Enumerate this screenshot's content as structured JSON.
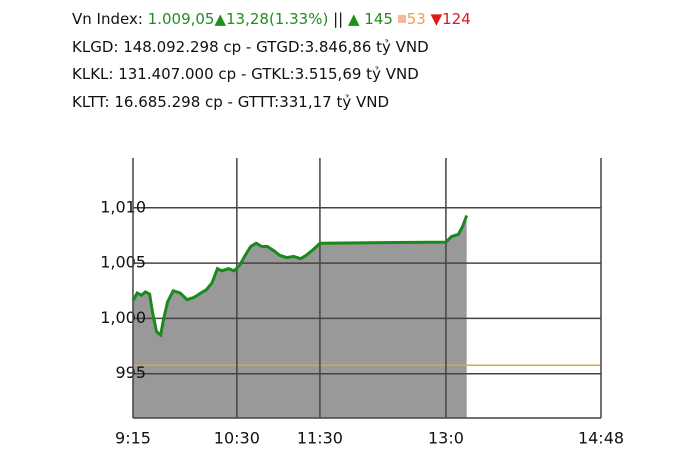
{
  "header": {
    "index_label": "Vn Index:",
    "index_value": "1.009,05▲13,28(1.33%)",
    "separator": "||",
    "advancers": "▲ 145",
    "unchanged": "53",
    "decliners": "▼124",
    "lines": [
      "KLGD: 148.092.298 cp - GTGD:3.846,86 tỷ VND",
      "KLKL: 131.407.000 cp - GTKL:3.515,69 tỷ VND",
      "KLTT: 16.685.298 cp - GTTT:331,17 tỷ VND"
    ]
  },
  "chart_data": {
    "type": "area",
    "color": "#1a8a1a",
    "fill": "#999999",
    "grid": true,
    "x": [
      0,
      3,
      6,
      9,
      12,
      14,
      17,
      20,
      22,
      25,
      29,
      34,
      39,
      44,
      49,
      53,
      57,
      61,
      64,
      69,
      73,
      77,
      81,
      85,
      89,
      93,
      97,
      102,
      106,
      111,
      116,
      121,
      125,
      130,
      135,
      226,
      230,
      235,
      238,
      241
    ],
    "values": [
      1001.6,
      1002.3,
      1002.1,
      1002.4,
      1002.2,
      1000.6,
      998.8,
      998.5,
      999.9,
      1001.5,
      1002.5,
      1002.3,
      1001.7,
      1001.9,
      1002.3,
      1002.6,
      1003.2,
      1004.5,
      1004.3,
      1004.5,
      1004.3,
      1004.8,
      1005.7,
      1006.5,
      1006.8,
      1006.5,
      1006.5,
      1006.1,
      1005.7,
      1005.5,
      1005.6,
      1005.4,
      1005.7,
      1006.2,
      1006.8,
      1006.9,
      1007.4,
      1007.6,
      1008.3,
      1009.3
    ],
    "reference_line": 995.77,
    "reference_color": "#e0a838",
    "xlim": [
      0,
      338
    ],
    "ylim": [
      991,
      1014.5
    ],
    "xticks": [
      {
        "value": 0,
        "label": "9:15"
      },
      {
        "value": 75,
        "label": "10:30"
      },
      {
        "value": 135,
        "label": "11:30"
      },
      {
        "value": 226,
        "label": "13:0"
      },
      {
        "value": 338,
        "label": "14:48"
      }
    ],
    "yticks": [
      {
        "value": 995,
        "label": "995"
      },
      {
        "value": 1000,
        "label": "1,000"
      },
      {
        "value": 1005,
        "label": "1,005"
      },
      {
        "value": 1010,
        "label": "1,010"
      }
    ]
  }
}
